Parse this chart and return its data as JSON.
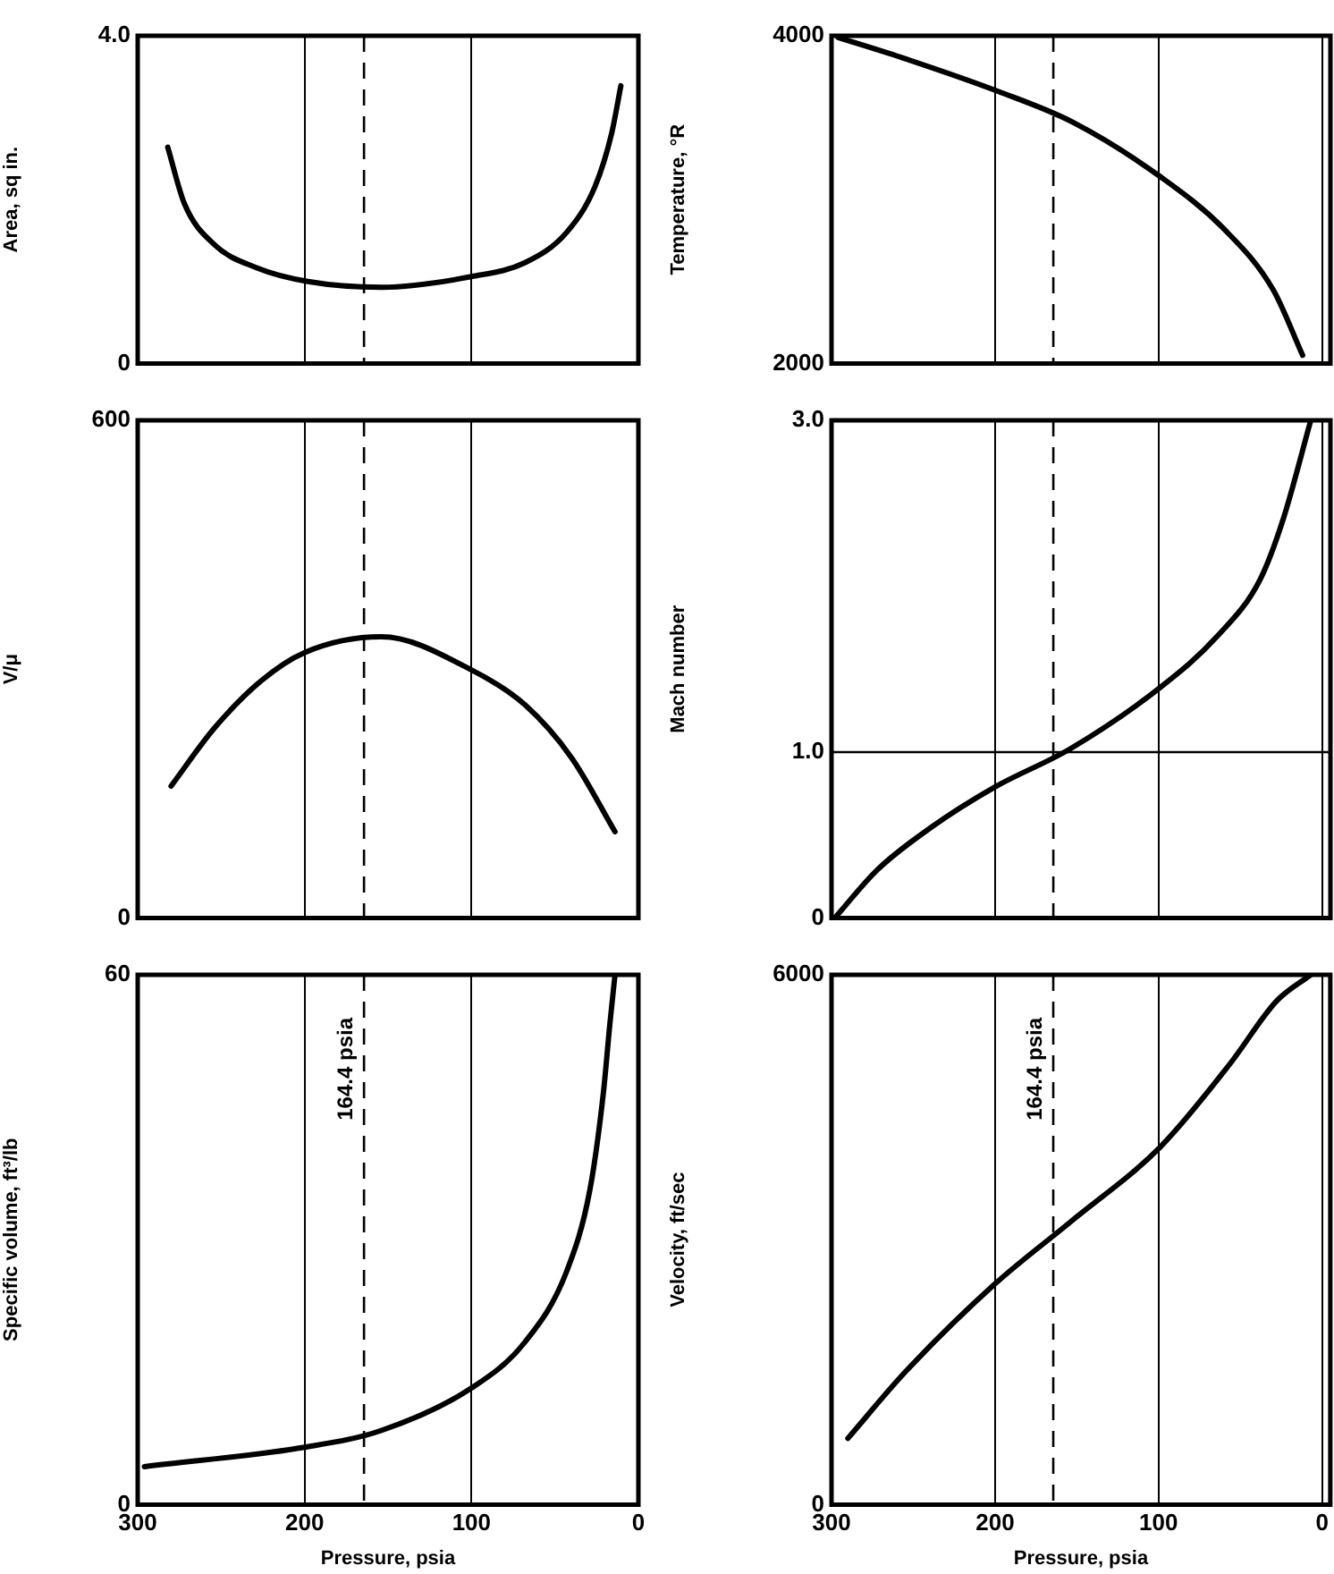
{
  "chart_data": [
    {
      "type": "line",
      "ylabel": "Area, sq in.",
      "x": [
        282,
        272,
        254,
        229,
        198,
        154,
        100,
        68,
        43,
        26,
        16,
        10.5
      ],
      "series": [
        {
          "color": "#000000",
          "values": [
            2.64,
            1.95,
            1.45,
            1.17,
            1.0,
            0.93,
            1.06,
            1.23,
            1.6,
            2.16,
            2.81,
            3.39
          ]
        }
      ],
      "xlim": [
        300,
        0
      ],
      "xticks": [
        300,
        200,
        100,
        0
      ],
      "ylim": [
        0,
        4
      ],
      "yticks": [
        0,
        {
          "value": 4,
          "label": "4.0"
        }
      ],
      "grid": "x",
      "tick_labels": "y",
      "legend": false,
      "marker": "none",
      "ref_lines": [
        {
          "axis": "x",
          "value": 164.4,
          "label": null,
          "line_style": "dashed"
        }
      ]
    },
    {
      "type": "line",
      "ylabel": "Temperature, °R",
      "x": [
        296,
        255,
        198,
        152,
        99,
        60,
        30,
        12
      ],
      "series": [
        {
          "color": "#000000",
          "values": [
            3990,
            3860,
            3660,
            3470,
            3140,
            2820,
            2450,
            2050
          ]
        }
      ],
      "xlim": [
        300,
        -5
      ],
      "xticks": [
        300,
        200,
        100,
        0
      ],
      "ylim": [
        2000,
        4000
      ],
      "yticks": [
        2000,
        4000
      ],
      "grid": "x",
      "tick_labels": "y",
      "legend": false,
      "marker": "none",
      "ref_lines": [
        {
          "axis": "x",
          "value": 164.4,
          "label": null,
          "line_style": "dashed"
        }
      ]
    },
    {
      "type": "line",
      "ylabel": "V/μ",
      "x": [
        280,
        254,
        226,
        200,
        154,
        100,
        68,
        40,
        14
      ],
      "series": [
        {
          "color": "#000000",
          "values": [
            159,
            229,
            286,
            320,
            339,
            299,
            257,
            193,
            104
          ]
        }
      ],
      "xlim": [
        300,
        0
      ],
      "xticks": [
        300,
        200,
        100,
        0
      ],
      "ylim": [
        0,
        600
      ],
      "yticks": [
        0,
        600
      ],
      "grid": "x",
      "tick_labels": "y",
      "legend": false,
      "marker": "none",
      "ref_lines": [
        {
          "axis": "x",
          "value": 164.4,
          "label": null,
          "line_style": "dashed"
        }
      ]
    },
    {
      "type": "line",
      "ylabel": "Mach number",
      "x": [
        298,
        272,
        240,
        200,
        154,
        99,
        64,
        38,
        24,
        7
      ],
      "series": [
        {
          "color": "#000000",
          "values": [
            0,
            0.29,
            0.54,
            0.79,
            1.02,
            1.39,
            1.7,
            2.04,
            2.4,
            3.0
          ]
        }
      ],
      "xlim": [
        300,
        -5
      ],
      "xticks": [
        300,
        200,
        100,
        0
      ],
      "ylim": [
        0,
        3
      ],
      "yticks": [
        0,
        {
          "value": 1,
          "label": "1.0"
        },
        {
          "value": 3,
          "label": "3.0"
        }
      ],
      "grid": "x",
      "tick_labels": "y",
      "legend": false,
      "marker": "none",
      "ref_lines": [
        {
          "axis": "x",
          "value": 164.4,
          "label": null,
          "line_style": "dashed"
        },
        {
          "axis": "y",
          "value": 1,
          "label": null,
          "line_style": "solid"
        }
      ]
    },
    {
      "type": "line",
      "ylabel": "Specific volume, ft³/lb",
      "xlabel": "Pressure, psia",
      "x": [
        296,
        200,
        154,
        100,
        68,
        43,
        29,
        21,
        17,
        14
      ],
      "series": [
        {
          "color": "#000000",
          "values": [
            4.3,
            6.5,
            8.4,
            13.2,
            18.4,
            26.4,
            35.7,
            46.6,
            54.6,
            60
          ]
        }
      ],
      "xlim": [
        300,
        0
      ],
      "xticks": [
        300,
        200,
        100,
        0
      ],
      "ylim": [
        0,
        60
      ],
      "yticks": [
        0,
        60
      ],
      "grid": "x",
      "legend": false,
      "marker": "none",
      "ref_lines": [
        {
          "axis": "x",
          "value": 164.4,
          "label": "164.4 psia",
          "line_style": "dashed"
        }
      ]
    },
    {
      "type": "line",
      "ylabel": "Velocity, ft/sec",
      "xlabel": "Pressure, psia",
      "x": [
        290,
        255,
        200,
        154,
        99,
        56,
        28,
        7
      ],
      "series": [
        {
          "color": "#000000",
          "values": [
            750,
            1500,
            2500,
            3200,
            4050,
            5000,
            5700,
            6000
          ]
        }
      ],
      "xlim": [
        300,
        -5
      ],
      "xticks": [
        300,
        200,
        100,
        0
      ],
      "ylim": [
        0,
        6000
      ],
      "yticks": [
        0,
        6000
      ],
      "grid": "x",
      "legend": false,
      "marker": "none",
      "ref_lines": [
        {
          "axis": "x",
          "value": 164.4,
          "label": "164.4 psia",
          "line_style": "dashed"
        }
      ]
    }
  ]
}
